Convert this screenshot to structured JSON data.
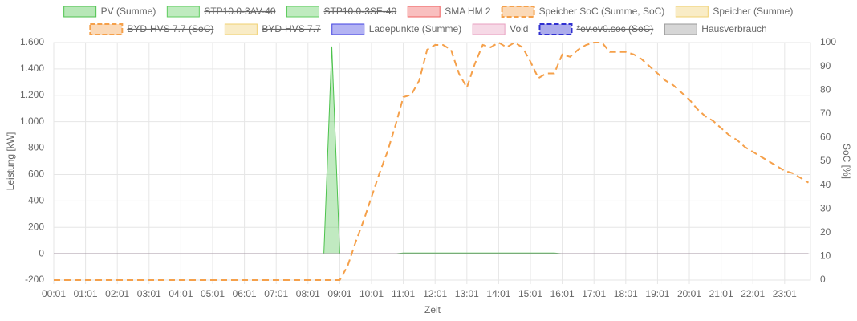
{
  "chart_data": {
    "type": "line",
    "xlabel": "Zeit",
    "ylabel": "Leistung [kW]",
    "y2label": "SoC [%]",
    "grid": true,
    "legend": "top",
    "ylim": [
      -200,
      1600
    ],
    "yticks": [
      -200,
      0,
      200,
      400,
      600,
      800,
      {
        "value": 1000,
        "label": "1.000"
      },
      {
        "value": 1200,
        "label": "1.200"
      },
      {
        "value": 1400,
        "label": "1.400"
      },
      {
        "value": 1600,
        "label": "1.600"
      }
    ],
    "y2lim": [
      0,
      100
    ],
    "y2ticks": [
      0,
      10,
      20,
      30,
      40,
      50,
      60,
      70,
      80,
      90,
      100
    ],
    "categories": [
      "00:01",
      null,
      null,
      null,
      "01:01",
      null,
      null,
      null,
      "02:01",
      null,
      null,
      null,
      "03:01",
      null,
      null,
      null,
      "04:01",
      null,
      null,
      null,
      "05:01",
      null,
      null,
      null,
      "06:01",
      null,
      null,
      null,
      "07:01",
      null,
      null,
      null,
      "08:01",
      null,
      null,
      null,
      "09:01",
      null,
      null,
      null,
      "10:01",
      null,
      null,
      null,
      "11:01",
      null,
      null,
      null,
      "12:01",
      null,
      null,
      null,
      "13:01",
      null,
      null,
      null,
      "14:01",
      null,
      null,
      null,
      "15:01",
      null,
      null,
      null,
      "16:01",
      null,
      null,
      null,
      "17:01",
      null,
      null,
      null,
      "18:01",
      null,
      null,
      null,
      "19:01",
      null,
      null,
      null,
      "20:01",
      null,
      null,
      null,
      "21:01",
      null,
      null,
      null,
      "22:01",
      null,
      null,
      null,
      "23:01",
      null,
      null,
      null
    ],
    "series": [
      {
        "name": "PV (Summe)",
        "color": "#4cc24c",
        "area": true,
        "values": [
          0,
          0,
          0,
          0,
          0,
          0,
          0,
          0,
          0,
          0,
          0,
          0,
          0,
          0,
          0,
          0,
          0,
          0,
          0,
          0,
          0,
          0,
          0,
          0,
          0,
          0,
          0,
          0,
          0,
          0,
          0,
          0,
          0,
          0,
          0,
          1570,
          0,
          0,
          0,
          0,
          0,
          0,
          0,
          0,
          5,
          5,
          5,
          5,
          5,
          5,
          5,
          5,
          5,
          5,
          5,
          5,
          5,
          5,
          5,
          5,
          5,
          5,
          5,
          5,
          0,
          0,
          0,
          0,
          0,
          0,
          0,
          0,
          0,
          0,
          0,
          0,
          0,
          0,
          0,
          0,
          0,
          0,
          0,
          0,
          0,
          0,
          0,
          0,
          0,
          0,
          0,
          0,
          0,
          0,
          0,
          0
        ]
      },
      {
        "name": "STP10.0-3AV-40",
        "color": "#5fcc5f",
        "hidden": true
      },
      {
        "name": "STP10.0-3SE-40",
        "color": "#5fcc5f",
        "hidden": true
      },
      {
        "name": "SMA HM 2",
        "color": "#f06060",
        "values": [
          0,
          0,
          0,
          0,
          0,
          0,
          0,
          0,
          0,
          0,
          0,
          0,
          0,
          0,
          0,
          0,
          0,
          0,
          0,
          0,
          0,
          0,
          0,
          0,
          0,
          0,
          0,
          0,
          0,
          0,
          0,
          0,
          0,
          0,
          0,
          0,
          0,
          0,
          0,
          0,
          0,
          0,
          0,
          0,
          0,
          0,
          0,
          0,
          0,
          0,
          0,
          0,
          0,
          0,
          0,
          0,
          0,
          0,
          0,
          0,
          0,
          0,
          0,
          0,
          0,
          0,
          0,
          0,
          0,
          0,
          0,
          0,
          0,
          0,
          0,
          0,
          0,
          0,
          0,
          0,
          0,
          0,
          0,
          0,
          0,
          0,
          0,
          0,
          0,
          0,
          0,
          0,
          0,
          0,
          0,
          0
        ]
      },
      {
        "name": "Speicher SoC (Summe, SoC)",
        "color": "#f5a04a",
        "dashed": true,
        "axis": "y2",
        "values": [
          0,
          0,
          0,
          0,
          0,
          0,
          0,
          0,
          0,
          0,
          0,
          0,
          0,
          0,
          0,
          0,
          0,
          0,
          0,
          0,
          0,
          0,
          0,
          0,
          0,
          0,
          0,
          0,
          0,
          0,
          0,
          0,
          0,
          0,
          0,
          0,
          0,
          6,
          16,
          25,
          35,
          45,
          54,
          65,
          77,
          78,
          84,
          97,
          99,
          99,
          97,
          87,
          81,
          91,
          99,
          98,
          100,
          98,
          100,
          98,
          92,
          85,
          87,
          87,
          95,
          94,
          97,
          99,
          100,
          100,
          96,
          96,
          96,
          95,
          93,
          90,
          87,
          84,
          82,
          79,
          76,
          72,
          69,
          67,
          64,
          61,
          59,
          56,
          54,
          52,
          50,
          48,
          46,
          45,
          43,
          41
        ]
      },
      {
        "name": "Speicher (Summe)",
        "color": "#f0d070",
        "values": [
          0,
          0,
          0,
          0,
          0,
          0,
          0,
          0,
          0,
          0,
          0,
          0,
          0,
          0,
          0,
          0,
          0,
          0,
          0,
          0,
          0,
          0,
          0,
          0,
          0,
          0,
          0,
          0,
          0,
          0,
          0,
          0,
          0,
          0,
          0,
          0,
          0,
          0,
          0,
          0,
          0,
          0,
          0,
          0,
          0,
          0,
          0,
          0,
          0,
          0,
          0,
          0,
          0,
          0,
          0,
          0,
          0,
          0,
          0,
          0,
          0,
          0,
          0,
          0,
          0,
          0,
          0,
          0,
          0,
          0,
          0,
          0,
          0,
          0,
          0,
          0,
          0,
          0,
          0,
          0,
          0,
          0,
          0,
          0,
          0,
          0,
          0,
          0,
          0,
          0,
          0,
          0,
          0,
          0,
          0,
          0
        ]
      },
      {
        "name": "BYD-HVS 7.7 (SoC)",
        "color": "#f5a04a",
        "dashed": true,
        "hidden": true
      },
      {
        "name": "BYD-HVS 7.7",
        "color": "#f0d070",
        "hidden": true
      },
      {
        "name": "Ladepunkte (Summe)",
        "color": "#4040e0",
        "values": [
          0,
          0,
          0,
          0,
          0,
          0,
          0,
          0,
          0,
          0,
          0,
          0,
          0,
          0,
          0,
          0,
          0,
          0,
          0,
          0,
          0,
          0,
          0,
          0,
          0,
          0,
          0,
          0,
          0,
          0,
          0,
          0,
          0,
          0,
          0,
          0,
          0,
          0,
          0,
          0,
          0,
          0,
          0,
          0,
          0,
          0,
          0,
          0,
          0,
          0,
          0,
          0,
          0,
          0,
          0,
          0,
          0,
          0,
          0,
          0,
          0,
          0,
          0,
          0,
          0,
          0,
          0,
          0,
          0,
          0,
          0,
          0,
          0,
          0,
          0,
          0,
          0,
          0,
          0,
          0,
          0,
          0,
          0,
          0,
          0,
          0,
          0,
          0,
          0,
          0,
          0,
          0,
          0,
          0,
          0,
          0
        ]
      },
      {
        "name": "Void",
        "color": "#e8a0c0",
        "values": [
          0,
          0,
          0,
          0,
          0,
          0,
          0,
          0,
          0,
          0,
          0,
          0,
          0,
          0,
          0,
          0,
          0,
          0,
          0,
          0,
          0,
          0,
          0,
          0,
          0,
          0,
          0,
          0,
          0,
          0,
          0,
          0,
          0,
          0,
          0,
          0,
          0,
          0,
          0,
          0,
          0,
          0,
          0,
          0,
          0,
          0,
          0,
          0,
          0,
          0,
          0,
          0,
          0,
          0,
          0,
          0,
          0,
          0,
          0,
          0,
          0,
          0,
          0,
          0,
          0,
          0,
          0,
          0,
          0,
          0,
          0,
          0,
          0,
          0,
          0,
          0,
          0,
          0,
          0,
          0,
          0,
          0,
          0,
          0,
          0,
          0,
          0,
          0,
          0,
          0,
          0,
          0,
          0,
          0,
          0,
          0
        ]
      },
      {
        "name": "*ev.ev0.soc (SoC)",
        "color": "#3030d0",
        "dashed": true,
        "hidden": true
      },
      {
        "name": "Hausverbrauch",
        "color": "#999999",
        "values": [
          0,
          0,
          0,
          0,
          0,
          0,
          0,
          0,
          0,
          0,
          0,
          0,
          0,
          0,
          0,
          0,
          0,
          0,
          0,
          0,
          0,
          0,
          0,
          0,
          0,
          0,
          0,
          0,
          0,
          0,
          0,
          0,
          0,
          0,
          0,
          0,
          0,
          0,
          0,
          0,
          0,
          0,
          0,
          0,
          0,
          0,
          0,
          0,
          0,
          0,
          0,
          0,
          0,
          0,
          0,
          0,
          0,
          0,
          0,
          0,
          0,
          0,
          0,
          0,
          0,
          0,
          0,
          0,
          0,
          0,
          0,
          0,
          0,
          0,
          0,
          0,
          0,
          0,
          0,
          0,
          0,
          0,
          0,
          0,
          0,
          0,
          0,
          0,
          0,
          0,
          0,
          0,
          0,
          0,
          0,
          0
        ]
      }
    ]
  }
}
